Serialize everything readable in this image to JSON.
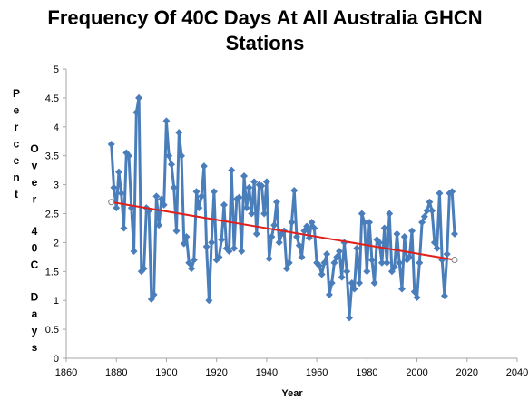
{
  "chart_data": {
    "type": "line",
    "title_line1": "Frequency Of 40C Days At All Australia GHCN",
    "title_line2": "Stations",
    "xlabel": "Year",
    "ylabel_word_columns": [
      [
        "Percent"
      ],
      [
        "Over",
        "40C",
        "Days"
      ]
    ],
    "xlim": [
      1860,
      2040
    ],
    "ylim": [
      0,
      5
    ],
    "x_ticks": [
      1860,
      1880,
      1900,
      1920,
      1940,
      1960,
      1980,
      2000,
      2020,
      2040
    ],
    "y_ticks": [
      "0",
      "0.5",
      "1",
      "1.5",
      "2",
      "2.5",
      "3",
      "3.5",
      "4",
      "4.5",
      "5"
    ],
    "grid": false,
    "legend": "none",
    "colors": {
      "series": "#4a7ebb",
      "trend": "#e0201b",
      "axis": "#a6a6a6"
    },
    "series": [
      {
        "x": [
          1878,
          1879,
          1880,
          1881,
          1882,
          1883,
          1884,
          1885,
          1886,
          1887,
          1888,
          1889,
          1890,
          1891,
          1892,
          1893,
          1894,
          1895,
          1896,
          1897,
          1898,
          1899,
          1900,
          1901,
          1902,
          1903,
          1904,
          1905,
          1906,
          1907,
          1908,
          1909,
          1910,
          1911,
          1912,
          1913,
          1914,
          1915,
          1916,
          1917,
          1918,
          1919,
          1920,
          1921,
          1922,
          1923,
          1924,
          1925,
          1926,
          1927,
          1928,
          1929,
          1930,
          1931,
          1932,
          1933,
          1934,
          1935,
          1936,
          1937,
          1938,
          1939,
          1940,
          1941,
          1942,
          1943,
          1944,
          1945,
          1946,
          1947,
          1948,
          1949,
          1950,
          1951,
          1952,
          1953,
          1954,
          1955,
          1956,
          1957,
          1958,
          1959,
          1960,
          1961,
          1962,
          1963,
          1964,
          1965,
          1966,
          1967,
          1968,
          1969,
          1970,
          1971,
          1972,
          1973,
          1974,
          1975,
          1976,
          1977,
          1978,
          1979,
          1980,
          1981,
          1982,
          1983,
          1984,
          1985,
          1986,
          1987,
          1988,
          1989,
          1990,
          1991,
          1992,
          1993,
          1994,
          1995,
          1996,
          1997,
          1998,
          1999,
          2000,
          2001,
          2002,
          2003,
          2004,
          2005,
          2006,
          2007,
          2008,
          2009,
          2010,
          2011,
          2012,
          2013,
          2014,
          2015
        ],
        "values": [
          3.7,
          2.95,
          2.6,
          3.22,
          2.85,
          2.25,
          3.55,
          3.5,
          2.6,
          1.85,
          4.25,
          4.5,
          1.5,
          1.55,
          2.6,
          2.55,
          1.02,
          1.1,
          2.8,
          2.3,
          2.75,
          2.65,
          4.1,
          3.5,
          3.35,
          2.95,
          2.2,
          3.9,
          3.5,
          1.98,
          2.1,
          1.65,
          1.55,
          1.7,
          2.88,
          2.6,
          2.8,
          3.32,
          1.93,
          1.0,
          2.0,
          2.88,
          1.7,
          1.75,
          2.05,
          2.65,
          1.9,
          1.85,
          3.25,
          1.9,
          2.75,
          2.78,
          1.85,
          3.15,
          2.6,
          2.95,
          2.5,
          3.05,
          2.15,
          3.0,
          2.98,
          2.5,
          3.05,
          1.72,
          2.1,
          2.3,
          2.7,
          2.0,
          2.15,
          2.2,
          1.55,
          1.65,
          2.35,
          2.9,
          2.1,
          1.95,
          1.75,
          2.2,
          2.28,
          2.08,
          2.35,
          2.25,
          1.65,
          1.6,
          1.45,
          1.65,
          1.8,
          1.1,
          1.3,
          1.65,
          1.75,
          1.85,
          1.4,
          2.0,
          1.5,
          0.7,
          1.3,
          1.2,
          1.9,
          1.3,
          2.5,
          2.35,
          1.5,
          2.35,
          1.7,
          1.3,
          2.05,
          2.0,
          1.65,
          2.25,
          1.65,
          2.5,
          1.5,
          1.58,
          2.15,
          1.65,
          1.2,
          2.1,
          1.7,
          1.75,
          2.2,
          1.15,
          1.05,
          1.65,
          2.35,
          2.45,
          2.55,
          2.7,
          2.55,
          2.0,
          1.9,
          2.85,
          1.7,
          1.08,
          1.8,
          2.85,
          2.88,
          2.15
        ]
      }
    ],
    "trendline": {
      "x": [
        1878,
        2015
      ],
      "y": [
        2.7,
        1.7
      ]
    }
  }
}
